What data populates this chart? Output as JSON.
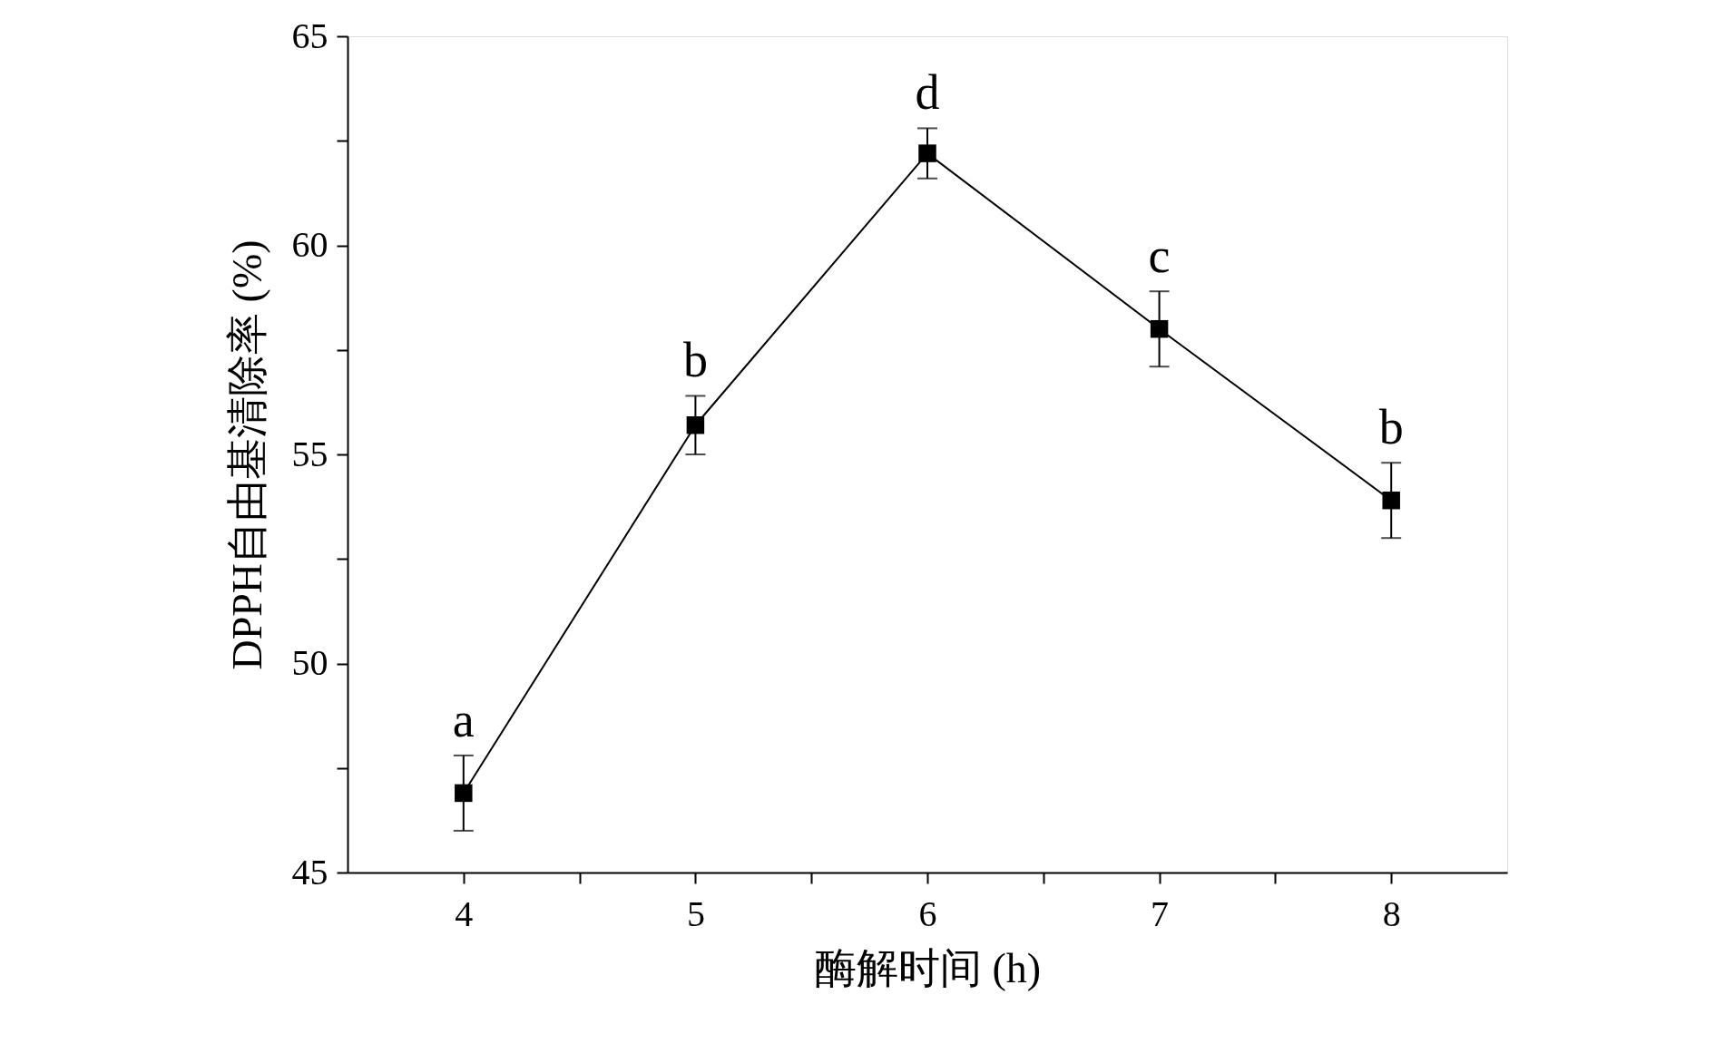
{
  "chart_data": {
    "type": "line",
    "xlabel": "酶解时间 (h)",
    "ylabel": "DPPH自由基清除率 (%)",
    "x": [
      4,
      5,
      6,
      7,
      8
    ],
    "series": [
      {
        "color": "#000000",
        "values": [
          46.9,
          55.7,
          62.2,
          58.0,
          53.9
        ],
        "errors": [
          0.9,
          0.7,
          0.6,
          0.9,
          0.9
        ]
      }
    ],
    "xlim": [
      3.5,
      8.5
    ],
    "xticks": [
      4,
      {
        "value": 4.5,
        "label": null
      },
      5,
      {
        "value": 5.5,
        "label": null
      },
      6,
      {
        "value": 6.5,
        "label": null
      },
      7,
      {
        "value": 7.5,
        "label": null
      },
      8
    ],
    "ylim": [
      45,
      65
    ],
    "yticks": [
      45,
      {
        "value": 47.5,
        "label": null
      },
      50,
      {
        "value": 52.5,
        "label": null
      },
      55,
      {
        "value": 57.5,
        "label": null
      },
      60,
      {
        "value": 62.5,
        "label": null
      },
      65
    ],
    "marker": "square",
    "line_style": "solid",
    "grid": false,
    "annotations": [
      {
        "text": "a",
        "x": 4,
        "y": 47.8
      },
      {
        "text": "b",
        "x": 5,
        "y": 56.4
      },
      {
        "text": "d",
        "x": 6,
        "y": 62.8
      },
      {
        "text": "c",
        "x": 7,
        "y": 58.9
      },
      {
        "text": "b",
        "x": 8,
        "y": 54.8
      }
    ]
  }
}
